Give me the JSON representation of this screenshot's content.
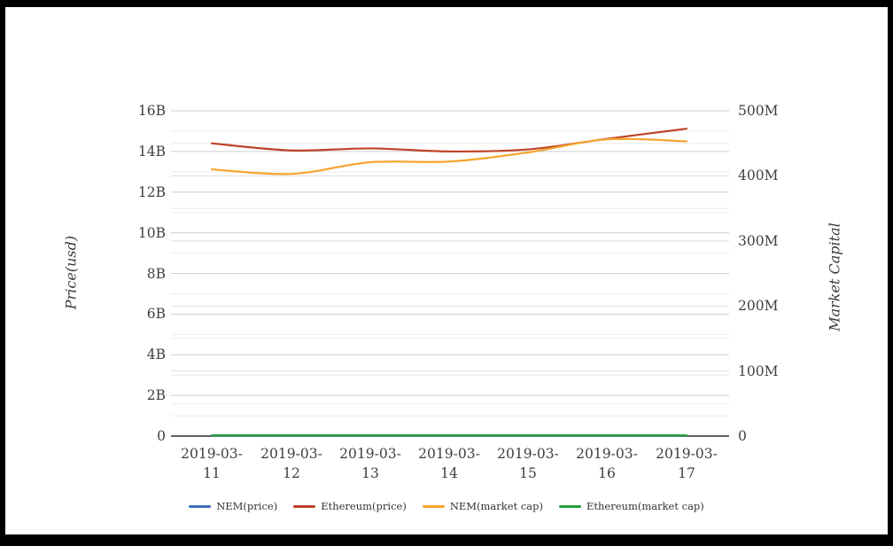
{
  "chart_data": {
    "type": "line",
    "x": [
      "2019-03-11",
      "2019-03-12",
      "2019-03-13",
      "2019-03-14",
      "2019-03-15",
      "2019-03-16",
      "2019-03-17"
    ],
    "series": [
      {
        "name": "NEM(price)",
        "color": "#3d6fb6",
        "axis": "left",
        "unit": "B",
        "values": [
          0,
          0,
          0,
          0,
          0,
          0,
          0
        ]
      },
      {
        "name": "Ethereum(price)",
        "color": "#bf4228",
        "axis": "left",
        "unit": "B",
        "values": [
          14.4,
          14.05,
          14.15,
          14.0,
          14.1,
          14.62,
          15.12
        ]
      },
      {
        "name": "NEM(market cap)",
        "color": "#f5a52f",
        "axis": "right",
        "unit": "M",
        "values": [
          410,
          403,
          421,
          422,
          436,
          456,
          453
        ]
      },
      {
        "name": "Ethereum(market cap)",
        "color": "#1fa037",
        "axis": "right",
        "unit": "M",
        "values": [
          0,
          0,
          0,
          0,
          0,
          0,
          0
        ]
      }
    ],
    "left_axis": {
      "label": "Price(usd)",
      "ticks": [
        "16B",
        "14B",
        "12B",
        "10B",
        "8B",
        "6B",
        "4B",
        "2B",
        "0"
      ],
      "min": 0,
      "max": 16,
      "unit": "B"
    },
    "right_axis": {
      "label": "Market Capital",
      "ticks": [
        "500M",
        "400M",
        "300M",
        "200M",
        "100M",
        "0"
      ],
      "min": 0,
      "max": 500,
      "unit": "M"
    },
    "title": "",
    "grid": true,
    "legend_position": "bottom",
    "colors": {
      "axis_line": "#2b2b2b",
      "grid_major": "#cfcfcf",
      "grid_right_major": "#dedede",
      "grid_minor": "#ececec",
      "tick_text": "#3f3f3f",
      "frame_border": "#000000"
    }
  }
}
